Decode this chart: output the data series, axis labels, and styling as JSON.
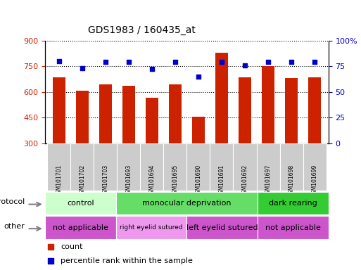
{
  "title": "GDS1983 / 160435_at",
  "samples": [
    "GSM101701",
    "GSM101702",
    "GSM101703",
    "GSM101693",
    "GSM101694",
    "GSM101695",
    "GSM101690",
    "GSM101691",
    "GSM101692",
    "GSM101697",
    "GSM101698",
    "GSM101699"
  ],
  "counts": [
    685,
    607,
    645,
    635,
    565,
    645,
    455,
    830,
    685,
    750,
    680,
    685
  ],
  "percentile_ranks": [
    80,
    73,
    79,
    79,
    72,
    79,
    65,
    79,
    76,
    79,
    79,
    79
  ],
  "ylim_left": [
    300,
    900
  ],
  "ylim_right": [
    0,
    100
  ],
  "yticks_left": [
    300,
    450,
    600,
    750,
    900
  ],
  "yticks_right": [
    0,
    25,
    50,
    75,
    100
  ],
  "bar_color": "#cc2200",
  "dot_color": "#0000cc",
  "protocol_groups": [
    {
      "label": "control",
      "start": 0,
      "end": 3,
      "color": "#ccffcc"
    },
    {
      "label": "monocular deprivation",
      "start": 3,
      "end": 9,
      "color": "#66dd66"
    },
    {
      "label": "dark rearing",
      "start": 9,
      "end": 12,
      "color": "#33cc33"
    }
  ],
  "other_groups": [
    {
      "label": "not applicable",
      "start": 0,
      "end": 3,
      "color": "#cc55cc"
    },
    {
      "label": "right eyelid sutured",
      "start": 3,
      "end": 6,
      "color": "#ee99ee"
    },
    {
      "label": "left eyelid sutured",
      "start": 6,
      "end": 9,
      "color": "#cc55cc"
    },
    {
      "label": "not applicable",
      "start": 9,
      "end": 12,
      "color": "#cc55cc"
    }
  ],
  "legend_count_label": "count",
  "legend_percentile_label": "percentile rank within the sample",
  "protocol_label": "protocol",
  "other_label": "other",
  "background_color": "#ffffff",
  "plot_bg_color": "#ffffff",
  "label_bg_color": "#cccccc"
}
